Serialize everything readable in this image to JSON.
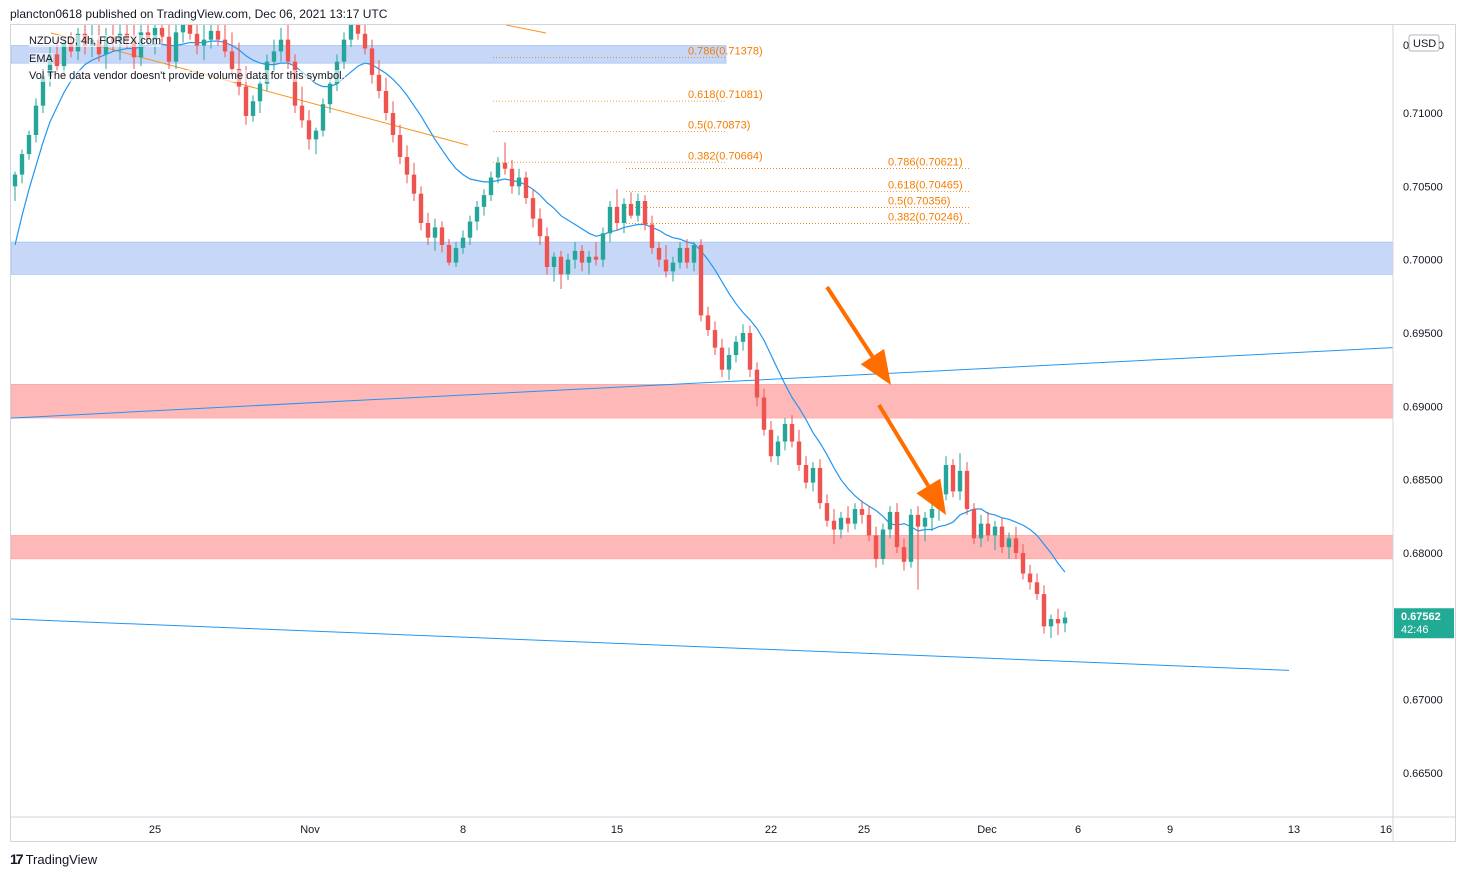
{
  "header": {
    "published": "plancton0618 published on TradingView.com, Dec 06, 2021 13:17 UTC"
  },
  "legend": {
    "symbol": "NZDUSD, 4h, FOREX.com",
    "ema": "EMA",
    "vol": "Vol  The data vendor doesn't provide volume data for this symbol."
  },
  "footer": {
    "brand": "TradingView",
    "logo_icon": "tradingview-logo-icon"
  },
  "price_badge": {
    "price": "0.67562",
    "countdown": "42:46",
    "color": "#22ab94"
  },
  "currency": "USD",
  "chart_data": {
    "type": "candlestick",
    "y_range": [
      0.662,
      0.716
    ],
    "y_ticks": [
      "0.71000",
      "0.70500",
      "0.70000",
      "0.69500",
      "0.69000",
      "0.68500",
      "0.68000",
      "0.67000",
      "0.66500"
    ],
    "y_top_partial_label": "0",
    "x_tick_labels": [
      "25",
      "Nov",
      "8",
      "15",
      "22",
      "25",
      "Dec",
      "6",
      "9",
      "13",
      "16"
    ],
    "colors": {
      "up": "#26a69a",
      "down": "#ef5350",
      "ema": "#2196f3",
      "fib": "#f57c00",
      "arrow": "#ff6d00"
    },
    "zones": [
      {
        "kind": "demand",
        "from": 0.7134,
        "to": 0.7146,
        "color": "#c7d7f7"
      },
      {
        "kind": "demand",
        "from": 0.699,
        "to": 0.7012,
        "color": "#c7d7f7"
      },
      {
        "kind": "supply",
        "from": 0.6892,
        "to": 0.6915,
        "color": "#ffb8b8"
      },
      {
        "kind": "supply",
        "from": 0.6796,
        "to": 0.6812,
        "color": "#ffb8b8"
      }
    ],
    "fib_set_1": [
      {
        "label": "0.786(0.71378)",
        "price": 0.71378
      },
      {
        "label": "0.618(0.71081)",
        "price": 0.71081
      },
      {
        "label": "0.5(0.70873)",
        "price": 0.70873
      },
      {
        "label": "0.382(0.70664)",
        "price": 0.70664
      }
    ],
    "fib_set_2": [
      {
        "label": "0.786(0.70621)",
        "price": 0.70621
      },
      {
        "label": "0.618(0.70465)",
        "price": 0.70465
      },
      {
        "label": "0.5(0.70356)",
        "price": 0.70356
      },
      {
        "label": "0.382(0.70246)",
        "price": 0.70246
      }
    ],
    "candles": [
      [
        0.705,
        0.706,
        0.704,
        0.7058
      ],
      [
        0.7058,
        0.7075,
        0.7052,
        0.7072
      ],
      [
        0.7072,
        0.7088,
        0.7068,
        0.7085
      ],
      [
        0.7085,
        0.711,
        0.708,
        0.7105
      ],
      [
        0.7105,
        0.713,
        0.71,
        0.7125
      ],
      [
        0.7125,
        0.7145,
        0.7118,
        0.714
      ],
      [
        0.714,
        0.715,
        0.7128,
        0.7132
      ],
      [
        0.7132,
        0.7152,
        0.7126,
        0.7148
      ],
      [
        0.7148,
        0.7155,
        0.7138,
        0.7142
      ],
      [
        0.7142,
        0.7158,
        0.7136,
        0.7154
      ],
      [
        0.7154,
        0.7162,
        0.714,
        0.7146
      ],
      [
        0.7146,
        0.716,
        0.7138,
        0.715
      ],
      [
        0.715,
        0.7162,
        0.7135,
        0.714
      ],
      [
        0.714,
        0.7158,
        0.713,
        0.7152
      ],
      [
        0.7152,
        0.7165,
        0.7142,
        0.7148
      ],
      [
        0.7148,
        0.716,
        0.7136,
        0.7154
      ],
      [
        0.7154,
        0.7168,
        0.7144,
        0.715
      ],
      [
        0.715,
        0.7165,
        0.713,
        0.7138
      ],
      [
        0.7138,
        0.716,
        0.7132,
        0.7155
      ],
      [
        0.7155,
        0.717,
        0.7146,
        0.715
      ],
      [
        0.715,
        0.7165,
        0.714,
        0.7158
      ],
      [
        0.7158,
        0.717,
        0.7148,
        0.7152
      ],
      [
        0.7152,
        0.7162,
        0.713,
        0.7135
      ],
      [
        0.7135,
        0.716,
        0.713,
        0.7155
      ],
      [
        0.7155,
        0.717,
        0.7148,
        0.716
      ],
      [
        0.716,
        0.7172,
        0.715,
        0.7154
      ],
      [
        0.7154,
        0.7168,
        0.714,
        0.7146
      ],
      [
        0.7146,
        0.716,
        0.7136,
        0.715
      ],
      [
        0.715,
        0.7165,
        0.7144,
        0.7156
      ],
      [
        0.7156,
        0.7168,
        0.7146,
        0.715
      ],
      [
        0.715,
        0.7162,
        0.7138,
        0.7142
      ],
      [
        0.7142,
        0.7155,
        0.7125,
        0.713
      ],
      [
        0.713,
        0.7148,
        0.7112,
        0.7118
      ],
      [
        0.7118,
        0.7132,
        0.7092,
        0.7098
      ],
      [
        0.7098,
        0.7112,
        0.7094,
        0.7108
      ],
      [
        0.7108,
        0.7125,
        0.71,
        0.712
      ],
      [
        0.712,
        0.714,
        0.7115,
        0.7135
      ],
      [
        0.7135,
        0.715,
        0.7128,
        0.7142
      ],
      [
        0.7142,
        0.7158,
        0.7135,
        0.715
      ],
      [
        0.715,
        0.716,
        0.713,
        0.7135
      ],
      [
        0.7135,
        0.714,
        0.71,
        0.7105
      ],
      [
        0.7105,
        0.7118,
        0.709,
        0.7095
      ],
      [
        0.7095,
        0.7102,
        0.7075,
        0.7082
      ],
      [
        0.7082,
        0.709,
        0.7072,
        0.7088
      ],
      [
        0.7088,
        0.711,
        0.7084,
        0.7106
      ],
      [
        0.7106,
        0.7125,
        0.71,
        0.712
      ],
      [
        0.712,
        0.714,
        0.7115,
        0.7135
      ],
      [
        0.7135,
        0.7155,
        0.713,
        0.715
      ],
      [
        0.715,
        0.7165,
        0.7145,
        0.716
      ],
      [
        0.716,
        0.7168,
        0.715,
        0.7154
      ],
      [
        0.7154,
        0.7162,
        0.714,
        0.7144
      ],
      [
        0.7144,
        0.715,
        0.712,
        0.7126
      ],
      [
        0.7126,
        0.7136,
        0.711,
        0.7115
      ],
      [
        0.7115,
        0.7124,
        0.7095,
        0.71
      ],
      [
        0.71,
        0.7108,
        0.708,
        0.7085
      ],
      [
        0.7085,
        0.7092,
        0.7065,
        0.707
      ],
      [
        0.707,
        0.7078,
        0.7052,
        0.7058
      ],
      [
        0.7058,
        0.7066,
        0.704,
        0.7045
      ],
      [
        0.7045,
        0.705,
        0.702,
        0.7025
      ],
      [
        0.7025,
        0.7032,
        0.701,
        0.7015
      ],
      [
        0.7015,
        0.7028,
        0.7006,
        0.7022
      ],
      [
        0.7022,
        0.7026,
        0.7005,
        0.701
      ],
      [
        0.701,
        0.7014,
        0.6996,
        0.6998
      ],
      [
        0.6998,
        0.7012,
        0.6995,
        0.7008
      ],
      [
        0.7008,
        0.702,
        0.7004,
        0.7015
      ],
      [
        0.7015,
        0.703,
        0.701,
        0.7026
      ],
      [
        0.7026,
        0.704,
        0.702,
        0.7036
      ],
      [
        0.7036,
        0.7048,
        0.703,
        0.7044
      ],
      [
        0.7044,
        0.706,
        0.704,
        0.7056
      ],
      [
        0.7056,
        0.707,
        0.7052,
        0.7066
      ],
      [
        0.7066,
        0.708,
        0.7058,
        0.7062
      ],
      [
        0.7062,
        0.7068,
        0.7045,
        0.705
      ],
      [
        0.705,
        0.7062,
        0.7044,
        0.7056
      ],
      [
        0.7056,
        0.706,
        0.7038,
        0.7042
      ],
      [
        0.7042,
        0.7048,
        0.7022,
        0.7028
      ],
      [
        0.7028,
        0.7035,
        0.701,
        0.7016
      ],
      [
        0.7016,
        0.7022,
        0.699,
        0.6995
      ],
      [
        0.6995,
        0.7005,
        0.6985,
        0.7002
      ],
      [
        0.7002,
        0.7006,
        0.698,
        0.699
      ],
      [
        0.699,
        0.7004,
        0.6986,
        0.7
      ],
      [
        0.7,
        0.7012,
        0.6994,
        0.7006
      ],
      [
        0.7006,
        0.701,
        0.6992,
        0.6998
      ],
      [
        0.6998,
        0.7006,
        0.699,
        0.7002
      ],
      [
        0.7002,
        0.7012,
        0.6996,
        0.7
      ],
      [
        0.7,
        0.7022,
        0.6995,
        0.7018
      ],
      [
        0.7018,
        0.704,
        0.7012,
        0.7036
      ],
      [
        0.7036,
        0.7048,
        0.702,
        0.7025
      ],
      [
        0.7025,
        0.7042,
        0.7018,
        0.7038
      ],
      [
        0.7038,
        0.7046,
        0.7028,
        0.703
      ],
      [
        0.703,
        0.7045,
        0.7026,
        0.704
      ],
      [
        0.704,
        0.7044,
        0.702,
        0.7024
      ],
      [
        0.7024,
        0.703,
        0.7004,
        0.7008
      ],
      [
        0.7008,
        0.7012,
        0.6995,
        0.7
      ],
      [
        0.7,
        0.701,
        0.6988,
        0.6992
      ],
      [
        0.6992,
        0.7002,
        0.6985,
        0.6998
      ],
      [
        0.6998,
        0.7012,
        0.6994,
        0.7008
      ],
      [
        0.7008,
        0.7014,
        0.6994,
        0.6998
      ],
      [
        0.6998,
        0.7012,
        0.6992,
        0.701
      ],
      [
        0.701,
        0.7014,
        0.6958,
        0.6962
      ],
      [
        0.6962,
        0.6968,
        0.6948,
        0.6952
      ],
      [
        0.6952,
        0.6958,
        0.6935,
        0.694
      ],
      [
        0.694,
        0.6946,
        0.692,
        0.6925
      ],
      [
        0.6925,
        0.694,
        0.6918,
        0.6935
      ],
      [
        0.6935,
        0.6948,
        0.693,
        0.6944
      ],
      [
        0.6944,
        0.6956,
        0.6938,
        0.695
      ],
      [
        0.695,
        0.6955,
        0.692,
        0.6925
      ],
      [
        0.6925,
        0.693,
        0.69,
        0.6906
      ],
      [
        0.6906,
        0.6912,
        0.688,
        0.6884
      ],
      [
        0.6884,
        0.689,
        0.6862,
        0.6866
      ],
      [
        0.6866,
        0.688,
        0.686,
        0.6876
      ],
      [
        0.6876,
        0.6892,
        0.687,
        0.6888
      ],
      [
        0.6888,
        0.6894,
        0.6872,
        0.6876
      ],
      [
        0.6876,
        0.6884,
        0.6856,
        0.686
      ],
      [
        0.686,
        0.6866,
        0.6844,
        0.6848
      ],
      [
        0.6848,
        0.6862,
        0.6842,
        0.6858
      ],
      [
        0.6858,
        0.6864,
        0.683,
        0.6834
      ],
      [
        0.6834,
        0.684,
        0.6818,
        0.6822
      ],
      [
        0.6822,
        0.683,
        0.6806,
        0.6816
      ],
      [
        0.6816,
        0.6828,
        0.681,
        0.6824
      ],
      [
        0.6824,
        0.6832,
        0.6814,
        0.682
      ],
      [
        0.682,
        0.6834,
        0.6816,
        0.683
      ],
      [
        0.683,
        0.6836,
        0.682,
        0.6826
      ],
      [
        0.6826,
        0.6832,
        0.6808,
        0.6812
      ],
      [
        0.6812,
        0.6818,
        0.679,
        0.6796
      ],
      [
        0.6796,
        0.682,
        0.6792,
        0.6816
      ],
      [
        0.6816,
        0.6832,
        0.681,
        0.6828
      ],
      [
        0.6828,
        0.6834,
        0.68,
        0.6804
      ],
      [
        0.6804,
        0.681,
        0.6788,
        0.6794
      ],
      [
        0.6794,
        0.683,
        0.679,
        0.6826
      ],
      [
        0.6826,
        0.6832,
        0.6775,
        0.6818
      ],
      [
        0.6818,
        0.6828,
        0.6808,
        0.6824
      ],
      [
        0.6824,
        0.6835,
        0.6815,
        0.683
      ],
      [
        0.683,
        0.6845,
        0.6822,
        0.684
      ],
      [
        0.684,
        0.6866,
        0.6836,
        0.686
      ],
      [
        0.686,
        0.6864,
        0.6838,
        0.6842
      ],
      [
        0.6842,
        0.6868,
        0.6836,
        0.6856
      ],
      [
        0.6856,
        0.6862,
        0.6826,
        0.683
      ],
      [
        0.683,
        0.6834,
        0.6806,
        0.681
      ],
      [
        0.681,
        0.6826,
        0.6804,
        0.682
      ],
      [
        0.682,
        0.6828,
        0.6808,
        0.6812
      ],
      [
        0.6812,
        0.6822,
        0.6802,
        0.6818
      ],
      [
        0.6818,
        0.6824,
        0.68,
        0.6804
      ],
      [
        0.6804,
        0.6814,
        0.6796,
        0.681
      ],
      [
        0.681,
        0.6818,
        0.6796,
        0.68
      ],
      [
        0.68,
        0.6806,
        0.6782,
        0.6786
      ],
      [
        0.6786,
        0.6792,
        0.6775,
        0.678
      ],
      [
        0.678,
        0.6786,
        0.6768,
        0.6772
      ],
      [
        0.6772,
        0.6778,
        0.6745,
        0.675
      ],
      [
        0.675,
        0.6758,
        0.6742,
        0.6755
      ],
      [
        0.6755,
        0.6762,
        0.6744,
        0.6752
      ],
      [
        0.6752,
        0.676,
        0.6746,
        0.6756
      ]
    ],
    "ema": [
      0.701,
      0.703,
      0.7048,
      0.7064,
      0.708,
      0.7094,
      0.7104,
      0.7114,
      0.7122,
      0.7128,
      0.7133,
      0.7136,
      0.7138,
      0.714,
      0.7142,
      0.7143,
      0.7144,
      0.7144,
      0.7145,
      0.7146,
      0.7147,
      0.7147,
      0.7146,
      0.7146,
      0.7147,
      0.7148,
      0.7148,
      0.7148,
      0.7149,
      0.7149,
      0.7148,
      0.7146,
      0.7143,
      0.7139,
      0.7136,
      0.7134,
      0.7133,
      0.7133,
      0.7134,
      0.7134,
      0.7132,
      0.7128,
      0.7124,
      0.712,
      0.7118,
      0.7118,
      0.712,
      0.7124,
      0.7128,
      0.7132,
      0.7134,
      0.7133,
      0.713,
      0.7127,
      0.7123,
      0.7118,
      0.7112,
      0.7105,
      0.7098,
      0.709,
      0.7082,
      0.7075,
      0.7068,
      0.7062,
      0.7058,
      0.7055,
      0.7054,
      0.7053,
      0.7053,
      0.7054,
      0.7055,
      0.7054,
      0.7053,
      0.7051,
      0.7048,
      0.7044,
      0.7039,
      0.7035,
      0.703,
      0.7027,
      0.7024,
      0.7021,
      0.7018,
      0.7016,
      0.7017,
      0.7019,
      0.702,
      0.7022,
      0.7023,
      0.7024,
      0.7024,
      0.7022,
      0.702,
      0.7017,
      0.7015,
      0.7014,
      0.7012,
      0.7011,
      0.7006,
      0.7,
      0.6993,
      0.6985,
      0.6977,
      0.697,
      0.6964,
      0.6959,
      0.6953,
      0.6945,
      0.6935,
      0.6925,
      0.6915,
      0.6906,
      0.6899,
      0.6891,
      0.6882,
      0.6875,
      0.6867,
      0.6858,
      0.685,
      0.6844,
      0.6839,
      0.6835,
      0.6832,
      0.6829,
      0.6825,
      0.682,
      0.6819,
      0.682,
      0.6818,
      0.6815,
      0.6816,
      0.6816,
      0.6818,
      0.6819,
      0.6821,
      0.6826,
      0.6828,
      0.683,
      0.683,
      0.6827,
      0.6826,
      0.6824,
      0.6823,
      0.6821,
      0.6819,
      0.6816,
      0.6812,
      0.6806,
      0.68,
      0.6793,
      0.6787
    ]
  }
}
